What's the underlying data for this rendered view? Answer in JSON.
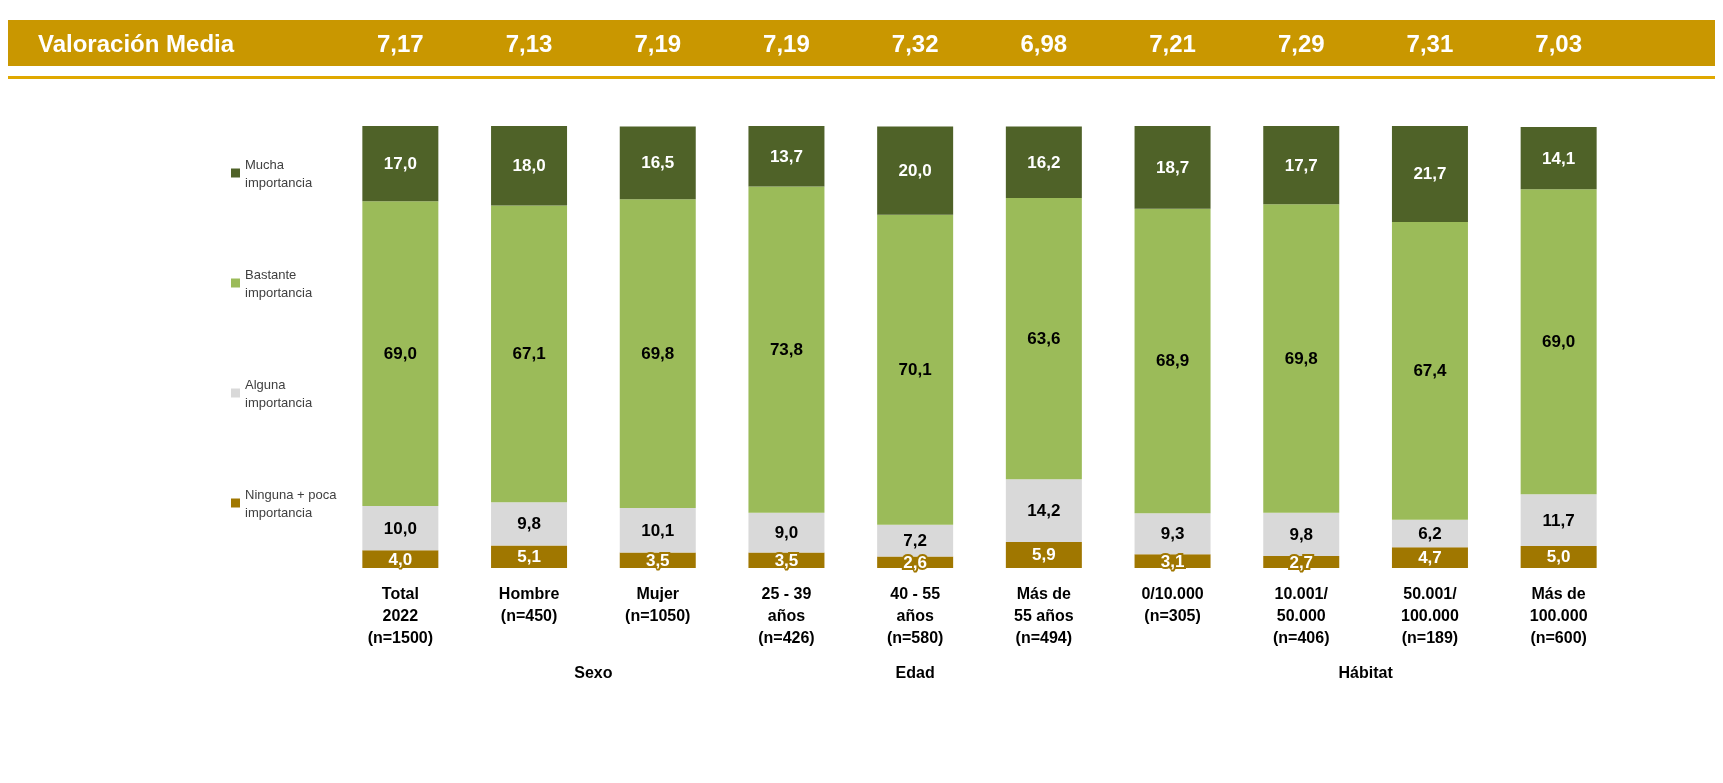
{
  "chart_data": {
    "type": "bar",
    "stacked": true,
    "categories": [
      "Total\n2022\n(n=1500)",
      "Hombre\n(n=450)",
      "Mujer\n(n=1050)",
      "25 - 39\naños\n(n=426)",
      "40 - 55\naños\n(n=580)",
      "Más de\n55 años\n(n=494)",
      "0/10.000\n(n=305)",
      "10.001/\n50.000\n(n=406)",
      "50.001/\n100.000\n(n=189)",
      "Más de\n100.000\n(n=600)"
    ],
    "series": [
      {
        "name": "Ninguna + poca\nimportancia",
        "color": "#a07700",
        "values": [
          4.0,
          5.1,
          3.5,
          3.5,
          2.6,
          5.9,
          3.1,
          2.7,
          4.7,
          5.0
        ],
        "value_labels": [
          "4,0",
          "5,1",
          "3,5",
          "3,5",
          "2,6",
          "5,9",
          "3,1",
          "2,7",
          "4,7",
          "5,0"
        ]
      },
      {
        "name": "Alguna\nimportancia",
        "color": "#d9d9d9",
        "values": [
          10.0,
          9.8,
          10.1,
          9.0,
          7.2,
          14.2,
          9.3,
          9.8,
          6.2,
          11.7
        ],
        "value_labels": [
          "10,0",
          "9,8",
          "10,1",
          "9,0",
          "7,2",
          "14,2",
          "9,3",
          "9,8",
          "6,2",
          "11,7"
        ]
      },
      {
        "name": "Bastante\nimportancia",
        "color": "#9bbb59",
        "values": [
          69.0,
          67.1,
          69.8,
          73.8,
          70.1,
          63.6,
          68.9,
          69.8,
          67.4,
          69.0
        ],
        "value_labels": [
          "69,0",
          "67,1",
          "69,8",
          "73,8",
          "70,1",
          "63,6",
          "68,9",
          "69,8",
          "67,4",
          "69,0"
        ]
      },
      {
        "name": "Mucha\nimportancia",
        "color": "#4f6228",
        "values": [
          17.0,
          18.0,
          16.5,
          13.7,
          20.0,
          16.2,
          18.7,
          17.7,
          21.7,
          14.1
        ],
        "value_labels": [
          "17,0",
          "18,0",
          "16,5",
          "13,7",
          "20,0",
          "16,2",
          "18,7",
          "17,7",
          "21,7",
          "14,1"
        ]
      }
    ],
    "annotations": [
      "Valoración Media",
      "7,17",
      "7,13",
      "7,19",
      "7,19",
      "7,32",
      "6,98",
      "7,21",
      "7,29",
      "7,31",
      "7,03",
      "Sexo",
      "Edad",
      "Hábitat"
    ],
    "legend": "left",
    "grid": false
  }
}
